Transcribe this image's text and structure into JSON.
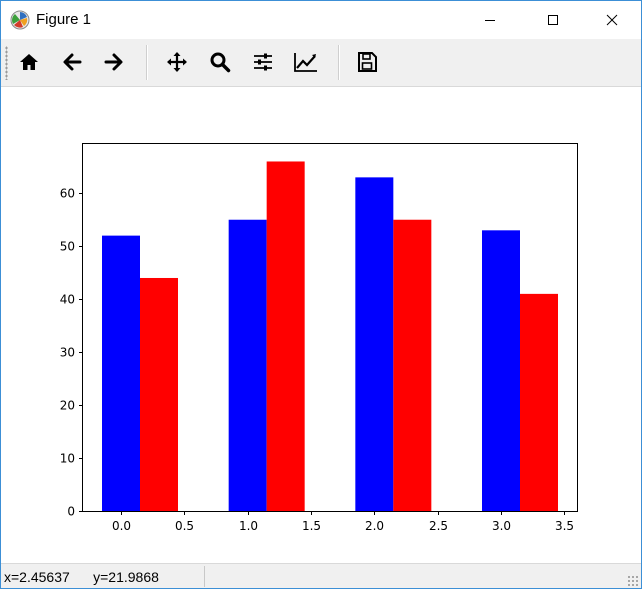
{
  "window": {
    "title": "Figure 1"
  },
  "titlebar_buttons": [
    "minimize-icon",
    "maximize-icon",
    "close-icon"
  ],
  "toolbar": {
    "items": [
      {
        "name": "home-button",
        "icon": "home-icon"
      },
      {
        "name": "back-button",
        "icon": "arrow-left-icon"
      },
      {
        "name": "forward-button",
        "icon": "arrow-right-icon"
      },
      {
        "name": "pan-button",
        "icon": "move-icon"
      },
      {
        "name": "zoom-button",
        "icon": "search-icon"
      },
      {
        "name": "subplots-button",
        "icon": "sliders-icon"
      },
      {
        "name": "edit-axis-button",
        "icon": "line-chart-icon"
      },
      {
        "name": "save-button",
        "icon": "floppy-disk-icon"
      }
    ]
  },
  "status": {
    "coords": "x=2.45637      y=21.9868"
  },
  "chart_data": {
    "type": "bar",
    "x": [
      0,
      1,
      2,
      3
    ],
    "bar_width": 0.3,
    "series": [
      {
        "offset": 0.0,
        "color": "#0000ff",
        "values": [
          52,
          55,
          63,
          53
        ]
      },
      {
        "offset": 0.3,
        "color": "#ff0000",
        "values": [
          44,
          66,
          55,
          41
        ]
      }
    ],
    "xlim": [
      -0.3,
      3.6
    ],
    "ylim": [
      0,
      69.3
    ],
    "xticks": [
      0.0,
      0.5,
      1.0,
      1.5,
      2.0,
      2.5,
      3.0,
      3.5
    ],
    "xtick_labels": [
      "0.0",
      "0.5",
      "1.0",
      "1.5",
      "2.0",
      "2.5",
      "3.0",
      "3.5"
    ],
    "yticks": [
      0,
      10,
      20,
      30,
      40,
      50,
      60
    ],
    "ytick_labels": [
      "0",
      "10",
      "20",
      "30",
      "40",
      "50",
      "60"
    ],
    "grid": false
  }
}
